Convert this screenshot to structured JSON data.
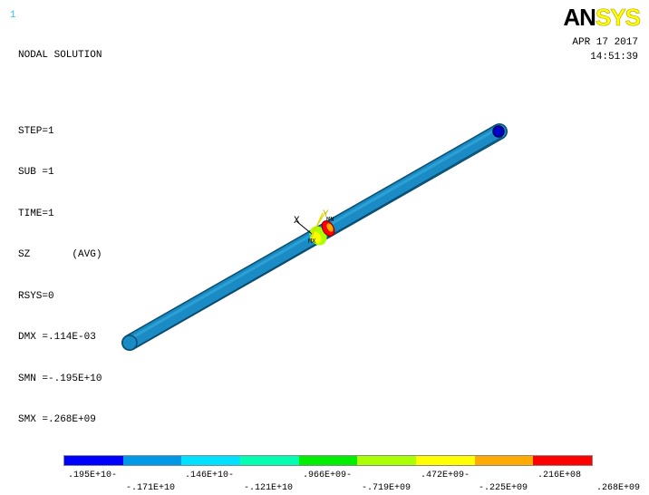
{
  "window_number": "1",
  "title": "NODAL SOLUTION",
  "info_lines": [
    "STEP=1",
    "SUB =1",
    "TIME=1",
    "SZ       (AVG)",
    "RSYS=0",
    "DMX =.114E-03",
    "SMN =-.195E+10",
    "SMX =.268E+09"
  ],
  "logo": {
    "part1": "AN",
    "part2": "SYS"
  },
  "date": "APR 17 2017",
  "time": "14:51:39",
  "axis_labels": {
    "x": "X",
    "y": "Y",
    "z": "MN",
    "mx": "MX"
  },
  "legend": {
    "colors": [
      "#0000ff",
      "#0099e8",
      "#00e0ff",
      "#00ffb0",
      "#00ee00",
      "#aaff00",
      "#ffff00",
      "#ffaa00",
      "#ff0000"
    ],
    "labels_top": [
      ".195E+10-",
      ".146E+10-",
      ".966E+09-",
      ".472E+09-",
      ".216E+08"
    ],
    "labels_bottom": [
      "-.171E+10",
      "-.121E+10",
      "-.719E+09",
      "-.225E+09",
      ".268E+09"
    ]
  }
}
